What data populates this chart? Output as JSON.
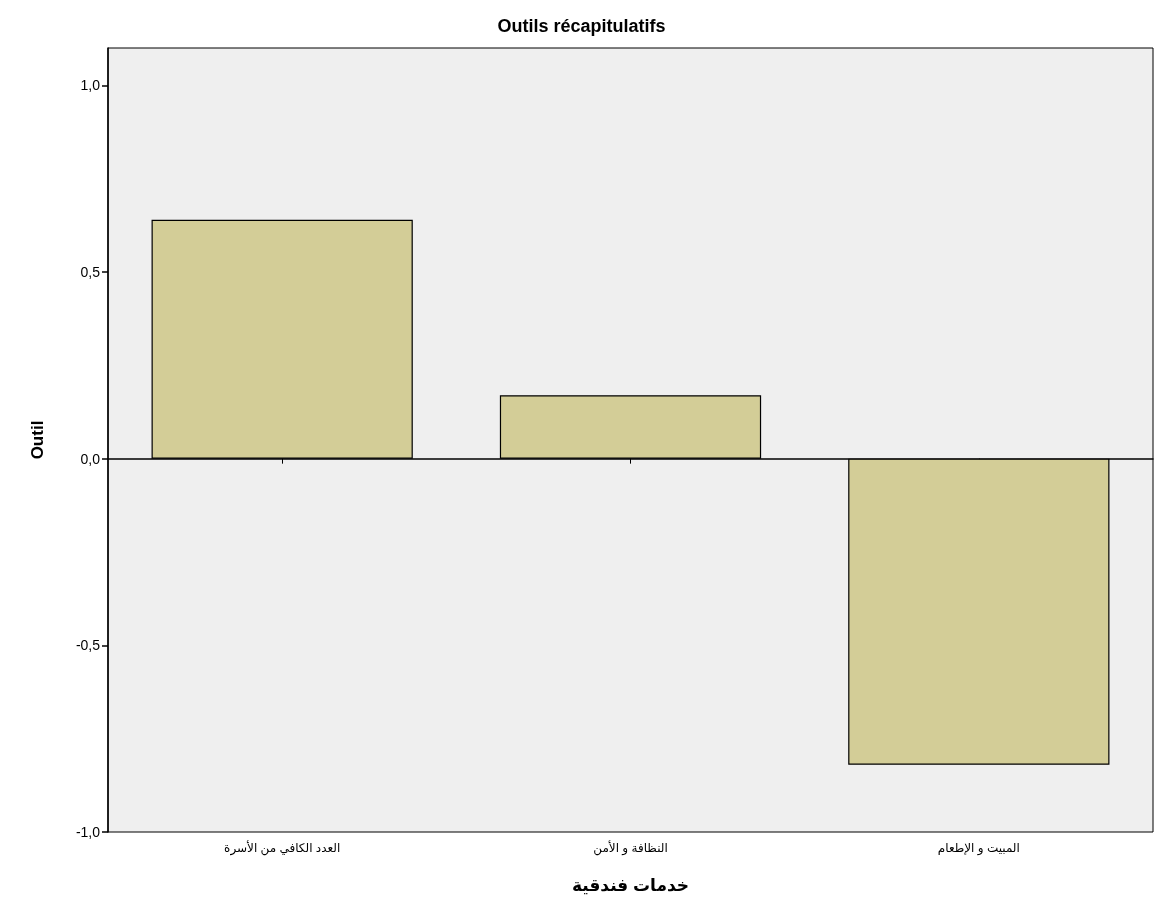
{
  "chart_data": {
    "type": "bar",
    "title": "Outils récapitulatifs",
    "xlabel": "خدمات فندقية",
    "ylabel": "Outil",
    "categories": [
      "العدد الكافي من الأسرة",
      "النظافة و الأمن",
      "المبيت و الإطعام"
    ],
    "values": [
      0.64,
      0.17,
      -0.82
    ],
    "color": "#d3cd97",
    "ylim": [
      -1,
      1.1
    ],
    "yticks": [
      {
        "value": -1,
        "label": "-1,0"
      },
      {
        "value": -0.5,
        "label": "-0,5"
      },
      {
        "value": 0,
        "label": "0,0"
      },
      {
        "value": 0.5,
        "label": "0,5"
      },
      {
        "value": 1,
        "label": "1,0"
      }
    ],
    "data_labels": false
  }
}
